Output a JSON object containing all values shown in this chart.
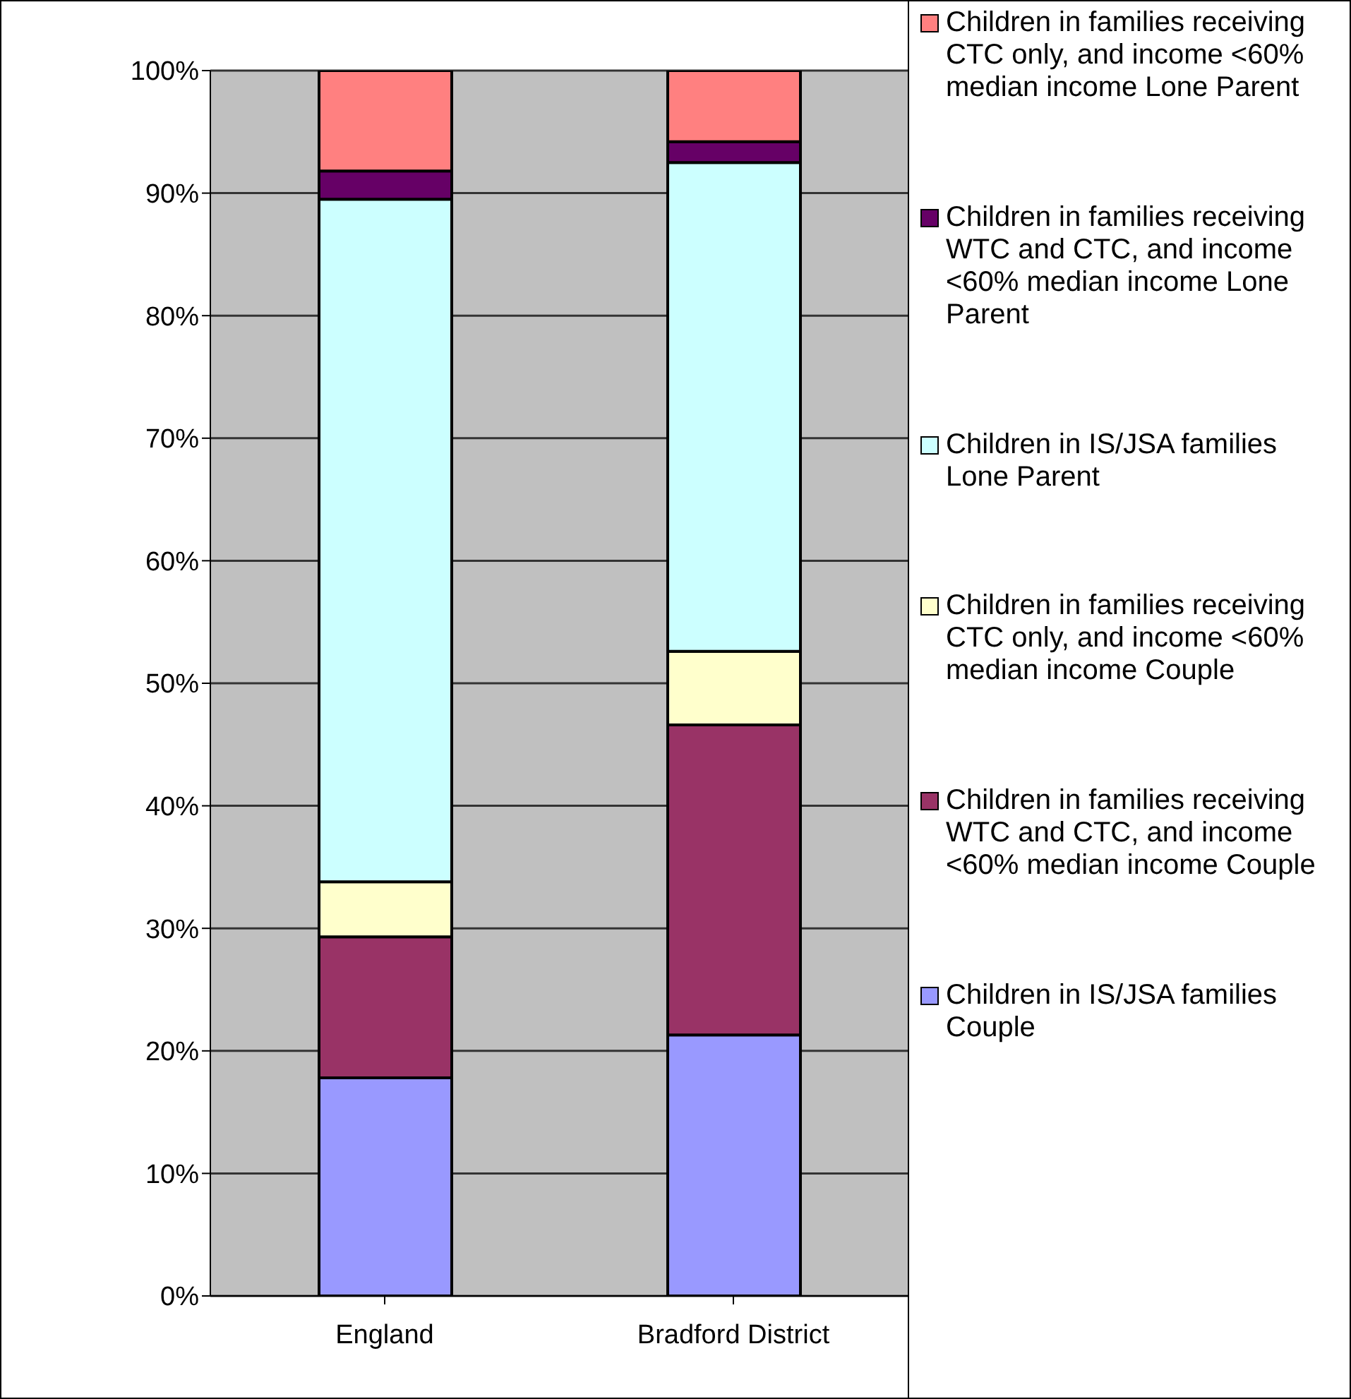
{
  "chart_data": {
    "type": "bar",
    "stacked": true,
    "categories": [
      "England",
      "Bradford District"
    ],
    "series": [
      {
        "name": "Children in IS/JSA families Couple",
        "color": "#9999ff",
        "values": [
          17.8,
          21.3
        ]
      },
      {
        "name": "Children in families receiving WTC and CTC, and income <60% median income Couple",
        "color": "#993366",
        "values": [
          11.5,
          25.3
        ]
      },
      {
        "name": "Children in families receiving CTC only, and income <60% median income Couple",
        "color": "#ffffcc",
        "values": [
          4.5,
          6.0
        ]
      },
      {
        "name": "Children in IS/JSA families Lone Parent",
        "color": "#ccffff",
        "values": [
          55.7,
          39.9
        ]
      },
      {
        "name": "Children in families receiving WTC and CTC, and income <60% median income Lone Parent",
        "color": "#660066",
        "values": [
          2.3,
          1.7
        ]
      },
      {
        "name": "Children in families receiving CTC only, and income <60% median income Lone Parent",
        "color": "#ff8080",
        "values": [
          8.2,
          5.8
        ]
      }
    ],
    "ylim": [
      0,
      100
    ],
    "yticks": [
      {
        "value": 0,
        "label": "0%"
      },
      {
        "value": 10,
        "label": "10%"
      },
      {
        "value": 20,
        "label": "20%"
      },
      {
        "value": 30,
        "label": "30%"
      },
      {
        "value": 40,
        "label": "40%"
      },
      {
        "value": 50,
        "label": "50%"
      },
      {
        "value": 60,
        "label": "60%"
      },
      {
        "value": 70,
        "label": "70%"
      },
      {
        "value": 80,
        "label": "80%"
      },
      {
        "value": 90,
        "label": "90%"
      },
      {
        "value": 100,
        "label": "100%"
      }
    ],
    "grid": "y",
    "legend": "right"
  }
}
